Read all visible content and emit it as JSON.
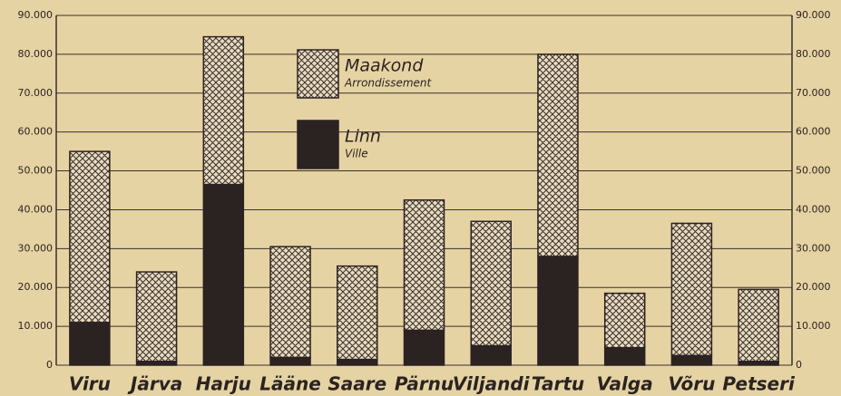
{
  "chart_data": {
    "type": "stacked_bar",
    "categories": [
      "Viru",
      "Järva",
      "Harju",
      "Lääne",
      "Saare",
      "Pärnu",
      "Viljandi",
      "Tartu",
      "Valga",
      "Võru",
      "Petseri"
    ],
    "series": [
      {
        "name": "Linn",
        "subname": "Ville",
        "color": "#2b2322",
        "pattern": "solid",
        "values": [
          11000,
          1000,
          46500,
          2000,
          1500,
          9000,
          5000,
          28000,
          4500,
          2500,
          1000
        ]
      },
      {
        "name": "Maakond",
        "subname": "Arrondissement",
        "color": "#2b2322",
        "pattern": "crosshatch",
        "values": [
          44000,
          23000,
          38000,
          28500,
          24000,
          33500,
          32000,
          52000,
          14000,
          34000,
          18500
        ]
      }
    ],
    "ylim": [
      0,
      90000
    ],
    "yticks": [
      0,
      {
        "value": 10000,
        "label": "10.000"
      },
      {
        "value": 20000,
        "label": "20.000"
      },
      {
        "value": 30000,
        "label": "30.000"
      },
      {
        "value": 40000,
        "label": "40.000"
      },
      {
        "value": 50000,
        "label": "50.000"
      },
      {
        "value": 60000,
        "label": "60.000"
      },
      {
        "value": 70000,
        "label": "70.000"
      },
      {
        "value": 80000,
        "label": "80.000"
      },
      {
        "value": 90000,
        "label": "90.000"
      }
    ],
    "grid": true
  }
}
